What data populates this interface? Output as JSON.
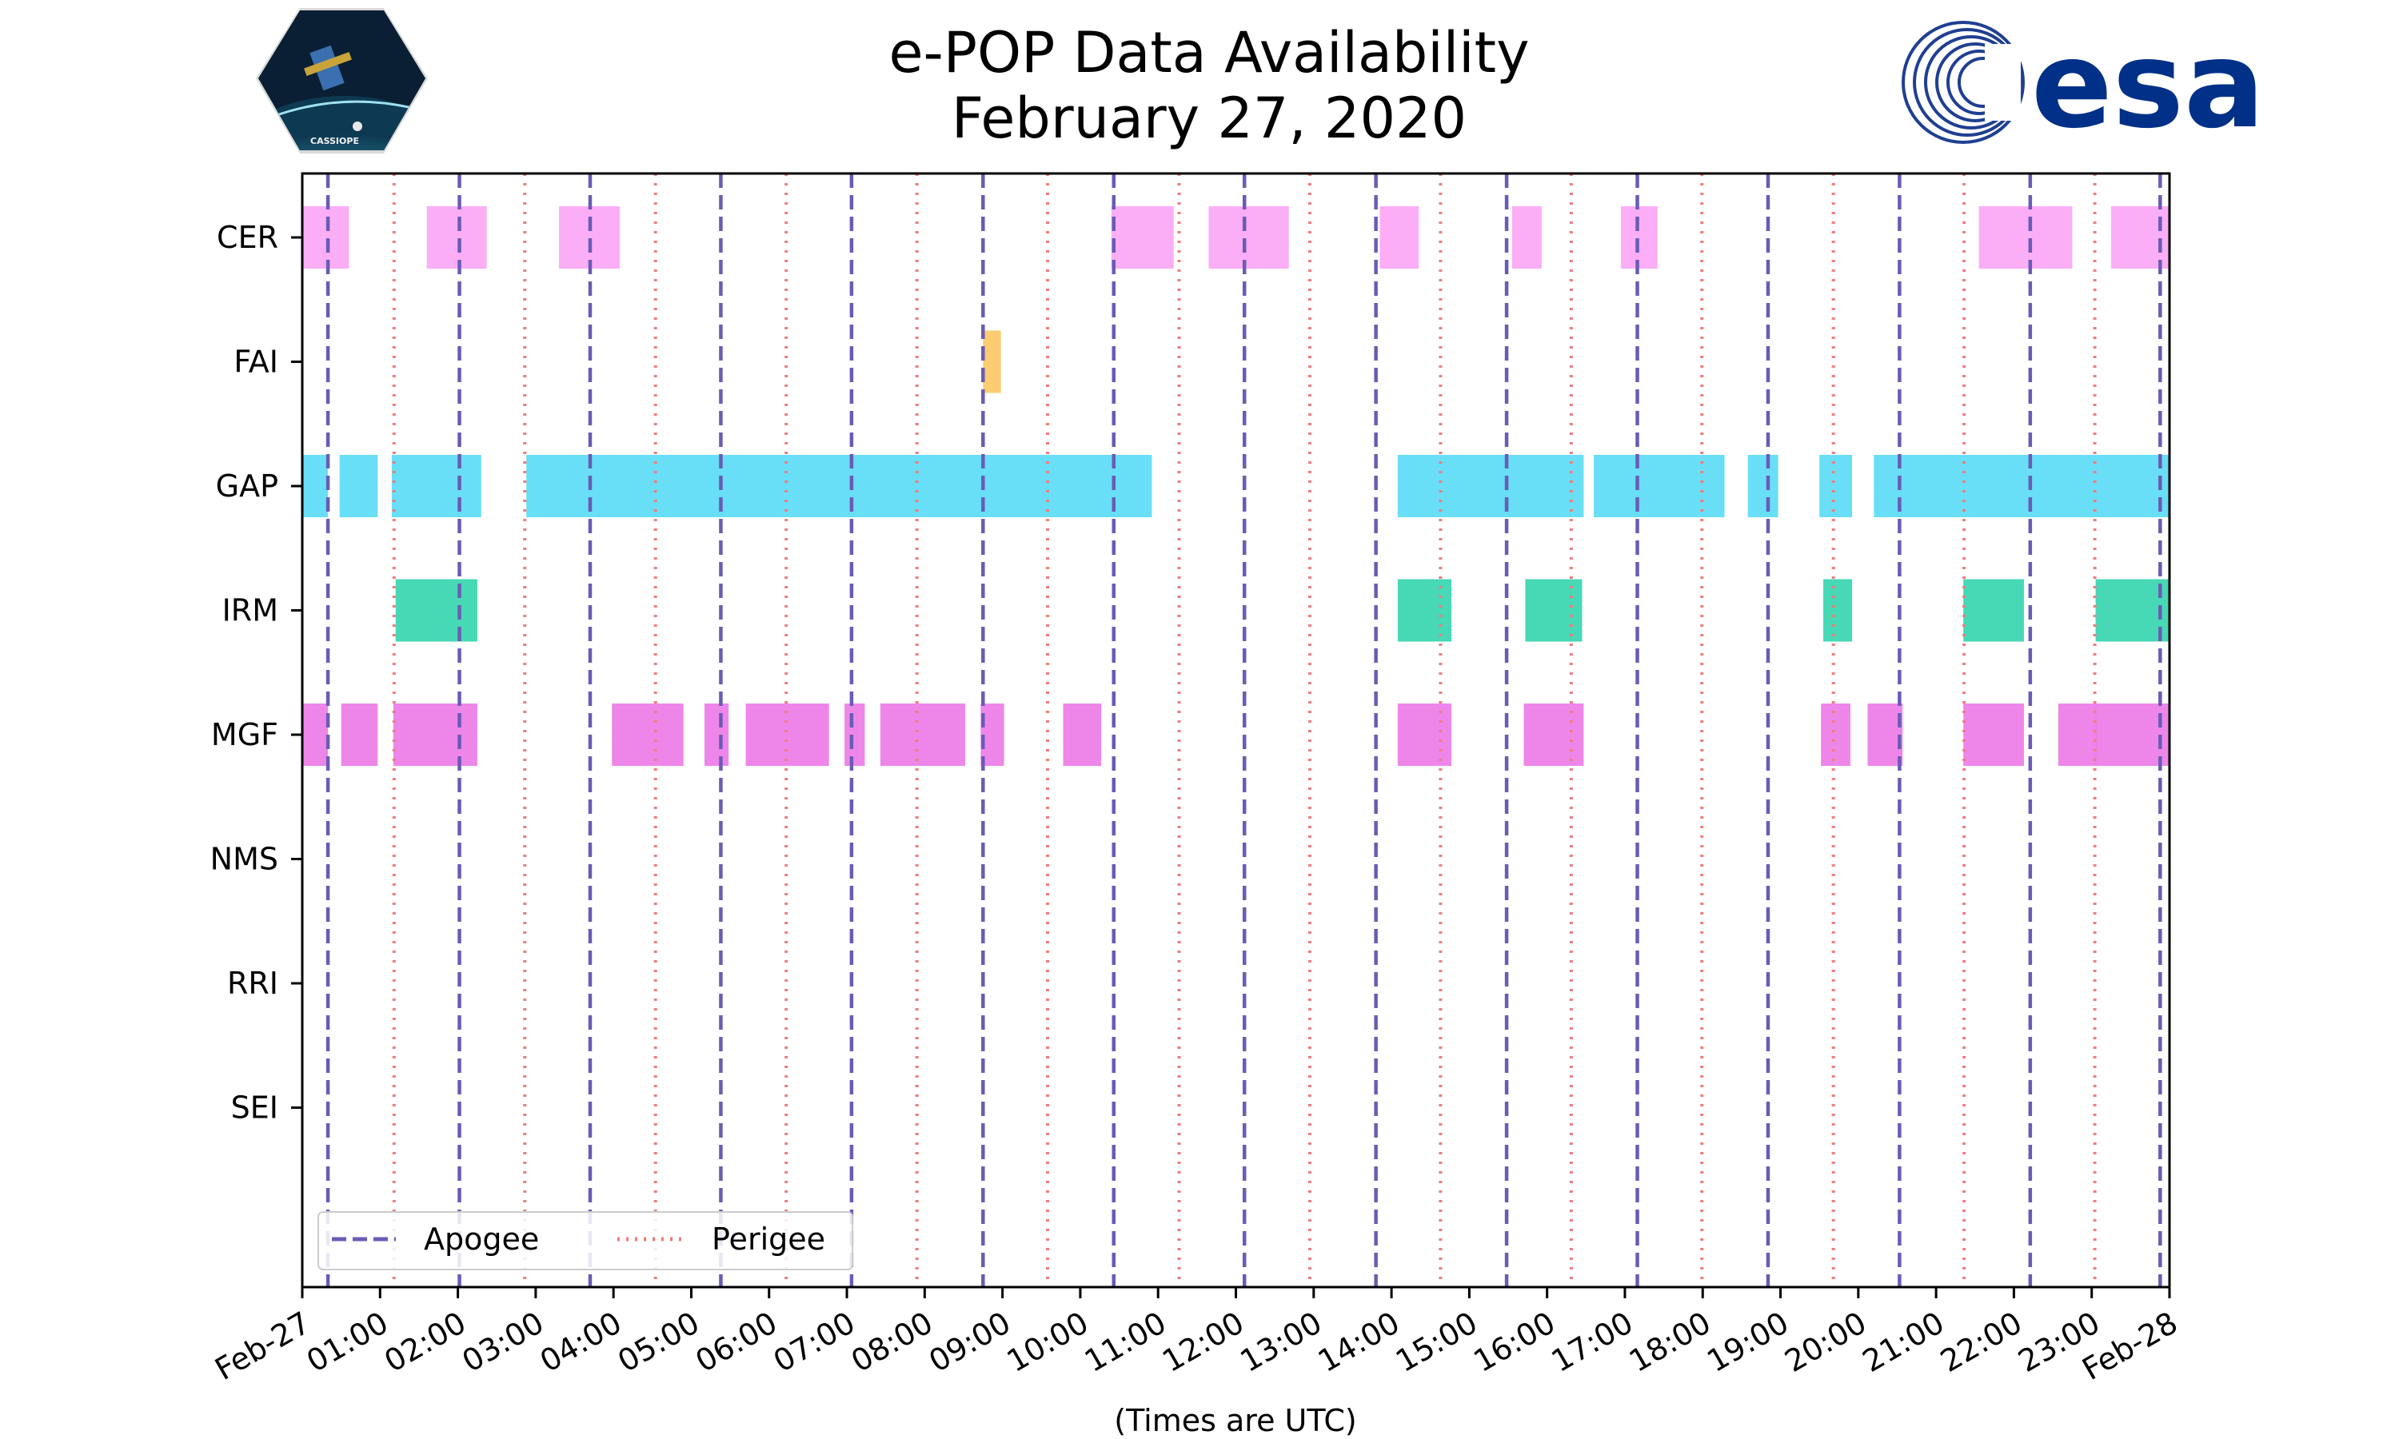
{
  "chart_data": {
    "type": "timeline",
    "title_line1": "e-POP Data Availability",
    "title_line2": "February 27, 2020",
    "xlabel": "(Times are UTC)",
    "x_unit": "hours",
    "xlim": [
      0,
      24
    ],
    "x_tick_labels": [
      "Feb-27",
      "01:00",
      "02:00",
      "03:00",
      "04:00",
      "05:00",
      "06:00",
      "07:00",
      "08:00",
      "09:00",
      "10:00",
      "11:00",
      "12:00",
      "13:00",
      "14:00",
      "15:00",
      "16:00",
      "17:00",
      "18:00",
      "19:00",
      "20:00",
      "21:00",
      "22:00",
      "23:00",
      "Feb-28"
    ],
    "instruments": [
      "CER",
      "FAI",
      "GAP",
      "IRM",
      "MGF",
      "NMS",
      "RRI",
      "SEI"
    ],
    "series": [
      {
        "name": "CER",
        "color": "#fba9f6",
        "intervals": [
          [
            0,
            0.6
          ],
          [
            1.6,
            2.37
          ],
          [
            3.3,
            4.08
          ],
          [
            10.4,
            11.2
          ],
          [
            11.65,
            12.68
          ],
          [
            13.85,
            14.35
          ],
          [
            15.55,
            15.93
          ],
          [
            16.95,
            17.42
          ],
          [
            21.55,
            22.75
          ],
          [
            23.25,
            24
          ]
        ]
      },
      {
        "name": "FAI",
        "color": "#fbc969",
        "intervals": [
          [
            8.75,
            8.98
          ]
        ]
      },
      {
        "name": "GAP",
        "color": "#61dcf7",
        "intervals": [
          [
            0,
            0.33
          ],
          [
            0.48,
            0.97
          ],
          [
            1.15,
            2.3
          ],
          [
            2.88,
            10.92
          ],
          [
            14.08,
            16.47
          ],
          [
            16.6,
            18.28
          ],
          [
            18.58,
            18.97
          ],
          [
            19.5,
            19.92
          ],
          [
            20.2,
            24
          ]
        ]
      },
      {
        "name": "IRM",
        "color": "#3dd6b1",
        "intervals": [
          [
            1.2,
            2.25
          ],
          [
            14.08,
            14.77
          ],
          [
            15.72,
            16.45
          ],
          [
            19.55,
            19.92
          ],
          [
            21.35,
            22.13
          ],
          [
            23.05,
            24
          ]
        ]
      },
      {
        "name": "MGF",
        "color": "#ed80e9",
        "intervals": [
          [
            0,
            0.33
          ],
          [
            0.5,
            0.97
          ],
          [
            1.17,
            2.25
          ],
          [
            3.98,
            4.9
          ],
          [
            5.17,
            5.48
          ],
          [
            5.7,
            6.77
          ],
          [
            6.97,
            7.23
          ],
          [
            7.43,
            8.52
          ],
          [
            8.72,
            9.02
          ],
          [
            9.78,
            10.27
          ],
          [
            14.08,
            14.77
          ],
          [
            15.7,
            16.47
          ],
          [
            19.52,
            19.9
          ],
          [
            20.12,
            20.57
          ],
          [
            21.35,
            22.13
          ],
          [
            22.57,
            23.07
          ],
          [
            23.03,
            24
          ]
        ]
      },
      {
        "name": "NMS",
        "color": "#999999",
        "intervals": []
      },
      {
        "name": "RRI",
        "color": "#999999",
        "intervals": []
      },
      {
        "name": "SEI",
        "color": "#999999",
        "intervals": []
      }
    ],
    "apogee_times": [
      0.33,
      2.02,
      3.7,
      5.38,
      7.06,
      8.75,
      10.43,
      12.11,
      13.8,
      15.48,
      17.16,
      18.84,
      20.53,
      22.21,
      23.88
    ],
    "perigee_times": [
      1.18,
      2.86,
      4.54,
      6.22,
      7.9,
      9.58,
      11.27,
      12.95,
      14.63,
      16.31,
      17.99,
      19.68,
      21.36,
      23.04
    ],
    "apogee_color": "#6a5bb5",
    "perigee_color": "#f07c7c",
    "legend": {
      "entries": [
        "Apogee",
        "Perigee"
      ],
      "placement": "lower-left"
    }
  },
  "logos": {
    "cassiope_text": "CASSIOPE",
    "esa_text": "esa"
  }
}
